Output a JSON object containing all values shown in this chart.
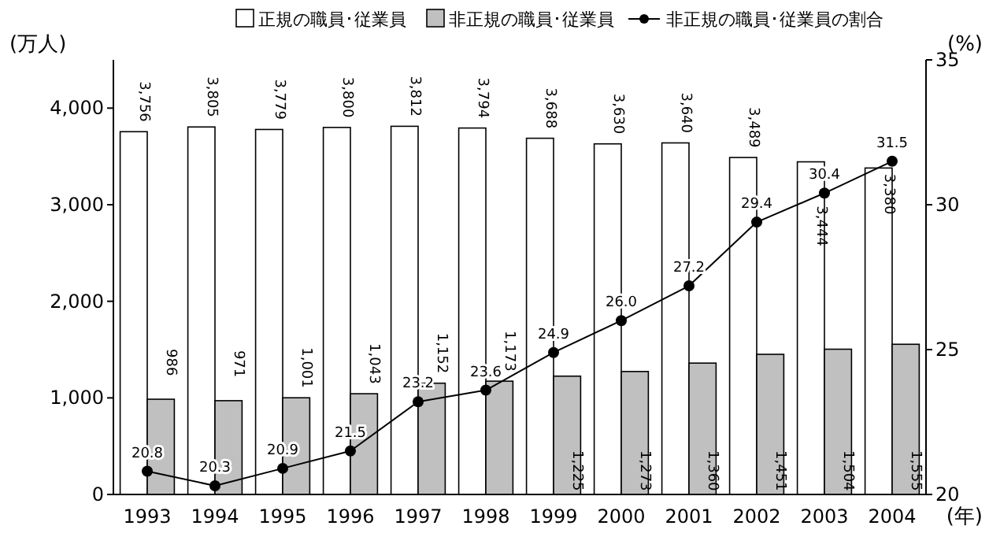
{
  "chart_data": {
    "type": "bar",
    "xlabel": "(年)",
    "ylabel": "(万人)",
    "y2label": "(%)",
    "categories": [
      "1993",
      "1994",
      "1995",
      "1996",
      "1997",
      "1998",
      "1999",
      "2000",
      "2001",
      "2002",
      "2003",
      "2004"
    ],
    "series": [
      {
        "name": "正規の職員･従業員",
        "color": "#ffffff",
        "values": [
          3756,
          3805,
          3779,
          3800,
          3812,
          3794,
          3688,
          3630,
          3640,
          3489,
          3444,
          3380
        ],
        "value_labels": [
          "3,756",
          "3,805",
          "3,779",
          "3,800",
          "3,812",
          "3,794",
          "3,688",
          "3,630",
          "3,640",
          "3,489",
          "3,444",
          "3,380"
        ]
      },
      {
        "name": "非正規の職員･従業員",
        "color": "#c0c0c0",
        "values": [
          986,
          971,
          1001,
          1043,
          1152,
          1173,
          1225,
          1273,
          1360,
          1451,
          1504,
          1555
        ],
        "value_labels": [
          "986",
          "971",
          "1,001",
          "1,043",
          "1,152",
          "1,173",
          "1,225",
          "1,273",
          "1,360",
          "1,451",
          "1,504",
          "1,555"
        ]
      },
      {
        "name": "非正規の職員･従業員の割合",
        "type": "line",
        "axis": "y2",
        "color": "#000000",
        "marker": "circle",
        "values": [
          20.8,
          20.3,
          20.9,
          21.5,
          23.2,
          23.6,
          24.9,
          26.0,
          27.2,
          29.4,
          30.4,
          31.5
        ],
        "value_labels": [
          "20.8",
          "20.3",
          "20.9",
          "21.5",
          "23.2",
          "23.6",
          "24.9",
          "26.0",
          "27.2",
          "29.4",
          "30.4",
          "31.5"
        ]
      }
    ],
    "ylim": [
      0,
      4500
    ],
    "yticks": [
      {
        "value": 0,
        "label": "0"
      },
      {
        "value": 1000,
        "label": "1,000"
      },
      {
        "value": 2000,
        "label": "2,000"
      },
      {
        "value": 3000,
        "label": "3,000"
      },
      {
        "value": 4000,
        "label": "4,000"
      }
    ],
    "y2lim": [
      20,
      35
    ],
    "y2ticks": [
      20,
      25,
      30,
      35
    ],
    "grid": false,
    "legend": "top"
  }
}
